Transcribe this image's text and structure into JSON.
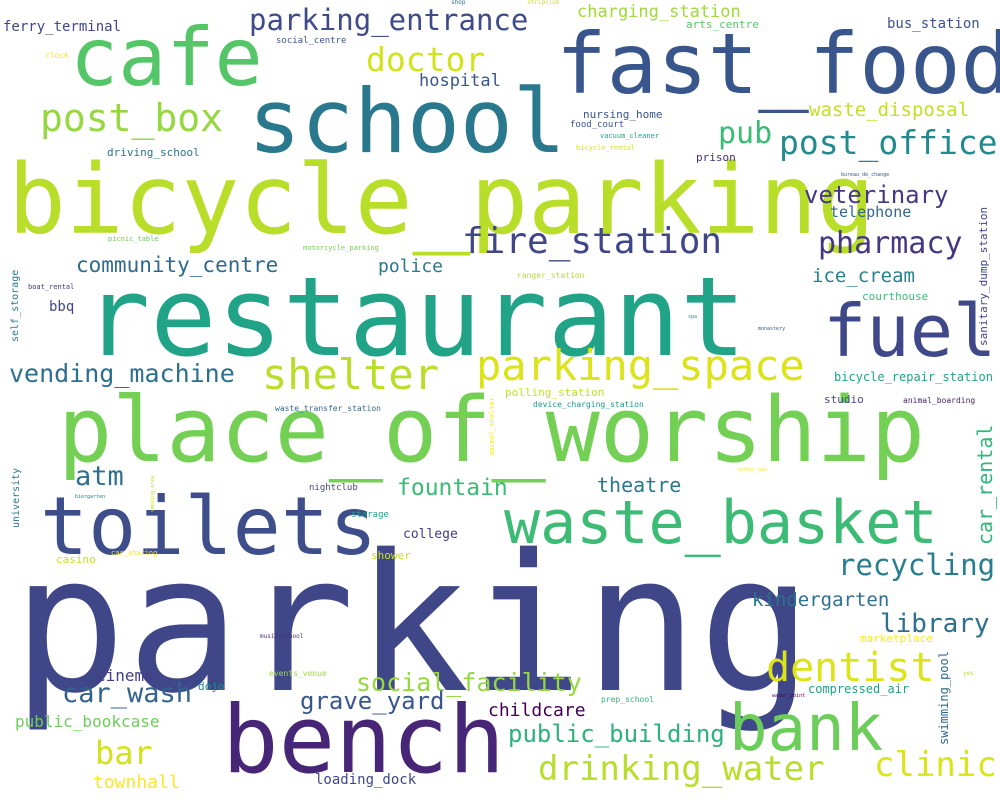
{
  "words": [
    {
      "text": "parking",
      "color": "#404788"
    },
    {
      "text": "restaurant",
      "color": "#20a386"
    },
    {
      "text": "bicycle_parking",
      "color": "#b8de29"
    },
    {
      "text": "place_of_worship",
      "color": "#74d055"
    },
    {
      "text": "school",
      "color": "#29788e"
    },
    {
      "text": "fast_food",
      "color": "#39568c"
    },
    {
      "text": "cafe",
      "color": "#55c667"
    },
    {
      "text": "toilets",
      "color": "#3d4e8a"
    },
    {
      "text": "waste_basket",
      "color": "#3cbb75"
    },
    {
      "text": "bench",
      "color": "#482677"
    },
    {
      "text": "bank",
      "color": "#6ccd5a"
    },
    {
      "text": "fuel",
      "color": "#3f4889"
    },
    {
      "text": "parking_space",
      "color": "#dce319"
    },
    {
      "text": "shelter",
      "color": "#b8de29"
    },
    {
      "text": "fire_station",
      "color": "#3f4788"
    },
    {
      "text": "pharmacy",
      "color": "#453781"
    },
    {
      "text": "dentist",
      "color": "#dce319"
    },
    {
      "text": "drinking_water",
      "color": "#b8de29"
    },
    {
      "text": "clinic",
      "color": "#dce319"
    },
    {
      "text": "post_box",
      "color": "#95d840"
    },
    {
      "text": "post_office",
      "color": "#238a8d"
    },
    {
      "text": "parking_entrance",
      "color": "#3e4a89"
    },
    {
      "text": "doctor",
      "color": "#d2e21b"
    },
    {
      "text": "pub",
      "color": "#3cbb75"
    },
    {
      "text": "veterinary",
      "color": "#453781"
    },
    {
      "text": "recycling",
      "color": "#287d8e"
    },
    {
      "text": "library",
      "color": "#2e6e8e"
    },
    {
      "text": "vending_machine",
      "color": "#2d708e"
    },
    {
      "text": "community_centre",
      "color": "#31688e"
    },
    {
      "text": "social_facility",
      "color": "#95d840"
    },
    {
      "text": "car_wash",
      "color": "#33638d"
    },
    {
      "text": "grave_yard",
      "color": "#39568c"
    },
    {
      "text": "public_building",
      "color": "#2db27d"
    },
    {
      "text": "atm",
      "color": "#2d708e"
    },
    {
      "text": "bar",
      "color": "#d2e21b"
    },
    {
      "text": "fountain",
      "color": "#3cbb75"
    },
    {
      "text": "theatre",
      "color": "#2a788e"
    },
    {
      "text": "car_rental",
      "color": "#32b67a"
    },
    {
      "text": "kindergarten",
      "color": "#2d718e"
    },
    {
      "text": "charging_station",
      "color": "#a0da39"
    },
    {
      "text": "waste_disposal",
      "color": "#c2df23"
    },
    {
      "text": "ice_cream",
      "color": "#26828e"
    },
    {
      "text": "hospital",
      "color": "#39568c"
    },
    {
      "text": "police",
      "color": "#2a788e"
    },
    {
      "text": "childcare",
      "color": "#440154"
    },
    {
      "text": "public_bookcase",
      "color": "#6ccd5a"
    },
    {
      "text": "townhall",
      "color": "#fde725"
    },
    {
      "text": "cinema",
      "color": "#433e85"
    },
    {
      "text": "telephone",
      "color": "#31688e"
    },
    {
      "text": "bus_station",
      "color": "#3b528b"
    },
    {
      "text": "ferry_terminal",
      "color": "#404688"
    },
    {
      "text": "loading_dock",
      "color": "#3f4889"
    },
    {
      "text": "marketplace",
      "color": "#fde725"
    },
    {
      "text": "bicycle_repair_station",
      "color": "#20a386"
    },
    {
      "text": "compressed_air",
      "color": "#1fa187"
    },
    {
      "text": "swimming_pool",
      "color": "#31688e"
    },
    {
      "text": "college",
      "color": "#443983"
    },
    {
      "text": "bbq",
      "color": "#3f4788"
    },
    {
      "text": "arts_centre",
      "color": "#56c667"
    },
    {
      "text": "driving_school",
      "color": "#2c728e"
    },
    {
      "text": "courthouse",
      "color": "#3dbc74"
    },
    {
      "text": "nursing_home",
      "color": "#39568c"
    },
    {
      "text": "prison",
      "color": "#472d7b"
    },
    {
      "text": "studio",
      "color": "#404688"
    },
    {
      "text": "sanitary_dump_station",
      "color": "#414487"
    },
    {
      "text": "dojo",
      "color": "#238a8d"
    },
    {
      "text": "university",
      "color": "#2c728e"
    },
    {
      "text": "self_storage",
      "color": "#2a788e"
    },
    {
      "text": "shower",
      "color": "#c8e020"
    },
    {
      "text": "casino",
      "color": "#c8e020"
    },
    {
      "text": "food_court",
      "color": "#39568c"
    },
    {
      "text": "social_centre",
      "color": "#39568c"
    },
    {
      "text": "polling_station",
      "color": "#c2df23"
    },
    {
      "text": "nightclub",
      "color": "#404588"
    },
    {
      "text": "storage",
      "color": "#1f9e89"
    },
    {
      "text": "prep_school",
      "color": "#2eb37c"
    },
    {
      "text": "events_venue",
      "color": "#a0da39"
    },
    {
      "text": "device_charging_station",
      "color": "#1f958b"
    },
    {
      "text": "waste_transfer_station",
      "color": "#31688e"
    },
    {
      "text": "animal_boarding",
      "color": "#482071"
    },
    {
      "text": "vacuum_cleaner",
      "color": "#20a386"
    },
    {
      "text": "bicycle_rental",
      "color": "#d8e219"
    },
    {
      "text": "picnic_table",
      "color": "#6ccd5a"
    },
    {
      "text": "motorcycle_parking",
      "color": "#7ad151"
    },
    {
      "text": "ranger_station",
      "color": "#b5de2b"
    },
    {
      "text": "boat_rental",
      "color": "#46337f"
    },
    {
      "text": "music_school",
      "color": "#46307e"
    },
    {
      "text": "car_sharing",
      "color": "#fde725"
    },
    {
      "text": "biergarten",
      "color": "#26828e"
    },
    {
      "text": "animal_shelter",
      "color": "#fde725"
    },
    {
      "text": "smoking_area",
      "color": "#c2df23"
    },
    {
      "text": "clock",
      "color": "#fde725"
    },
    {
      "text": "shop",
      "color": "#2d708e"
    },
    {
      "text": "stripclub",
      "color": "#c8e020"
    },
    {
      "text": "bureau_de_change",
      "color": "#39568c"
    },
    {
      "text": "spa",
      "color": "#238a8d"
    },
    {
      "text": "monastery",
      "color": "#39568c"
    },
    {
      "text": "letter_box",
      "color": "#fde725"
    },
    {
      "text": "water_point",
      "color": "#440154"
    },
    {
      "text": "yes",
      "color": "#b8de29"
    }
  ]
}
